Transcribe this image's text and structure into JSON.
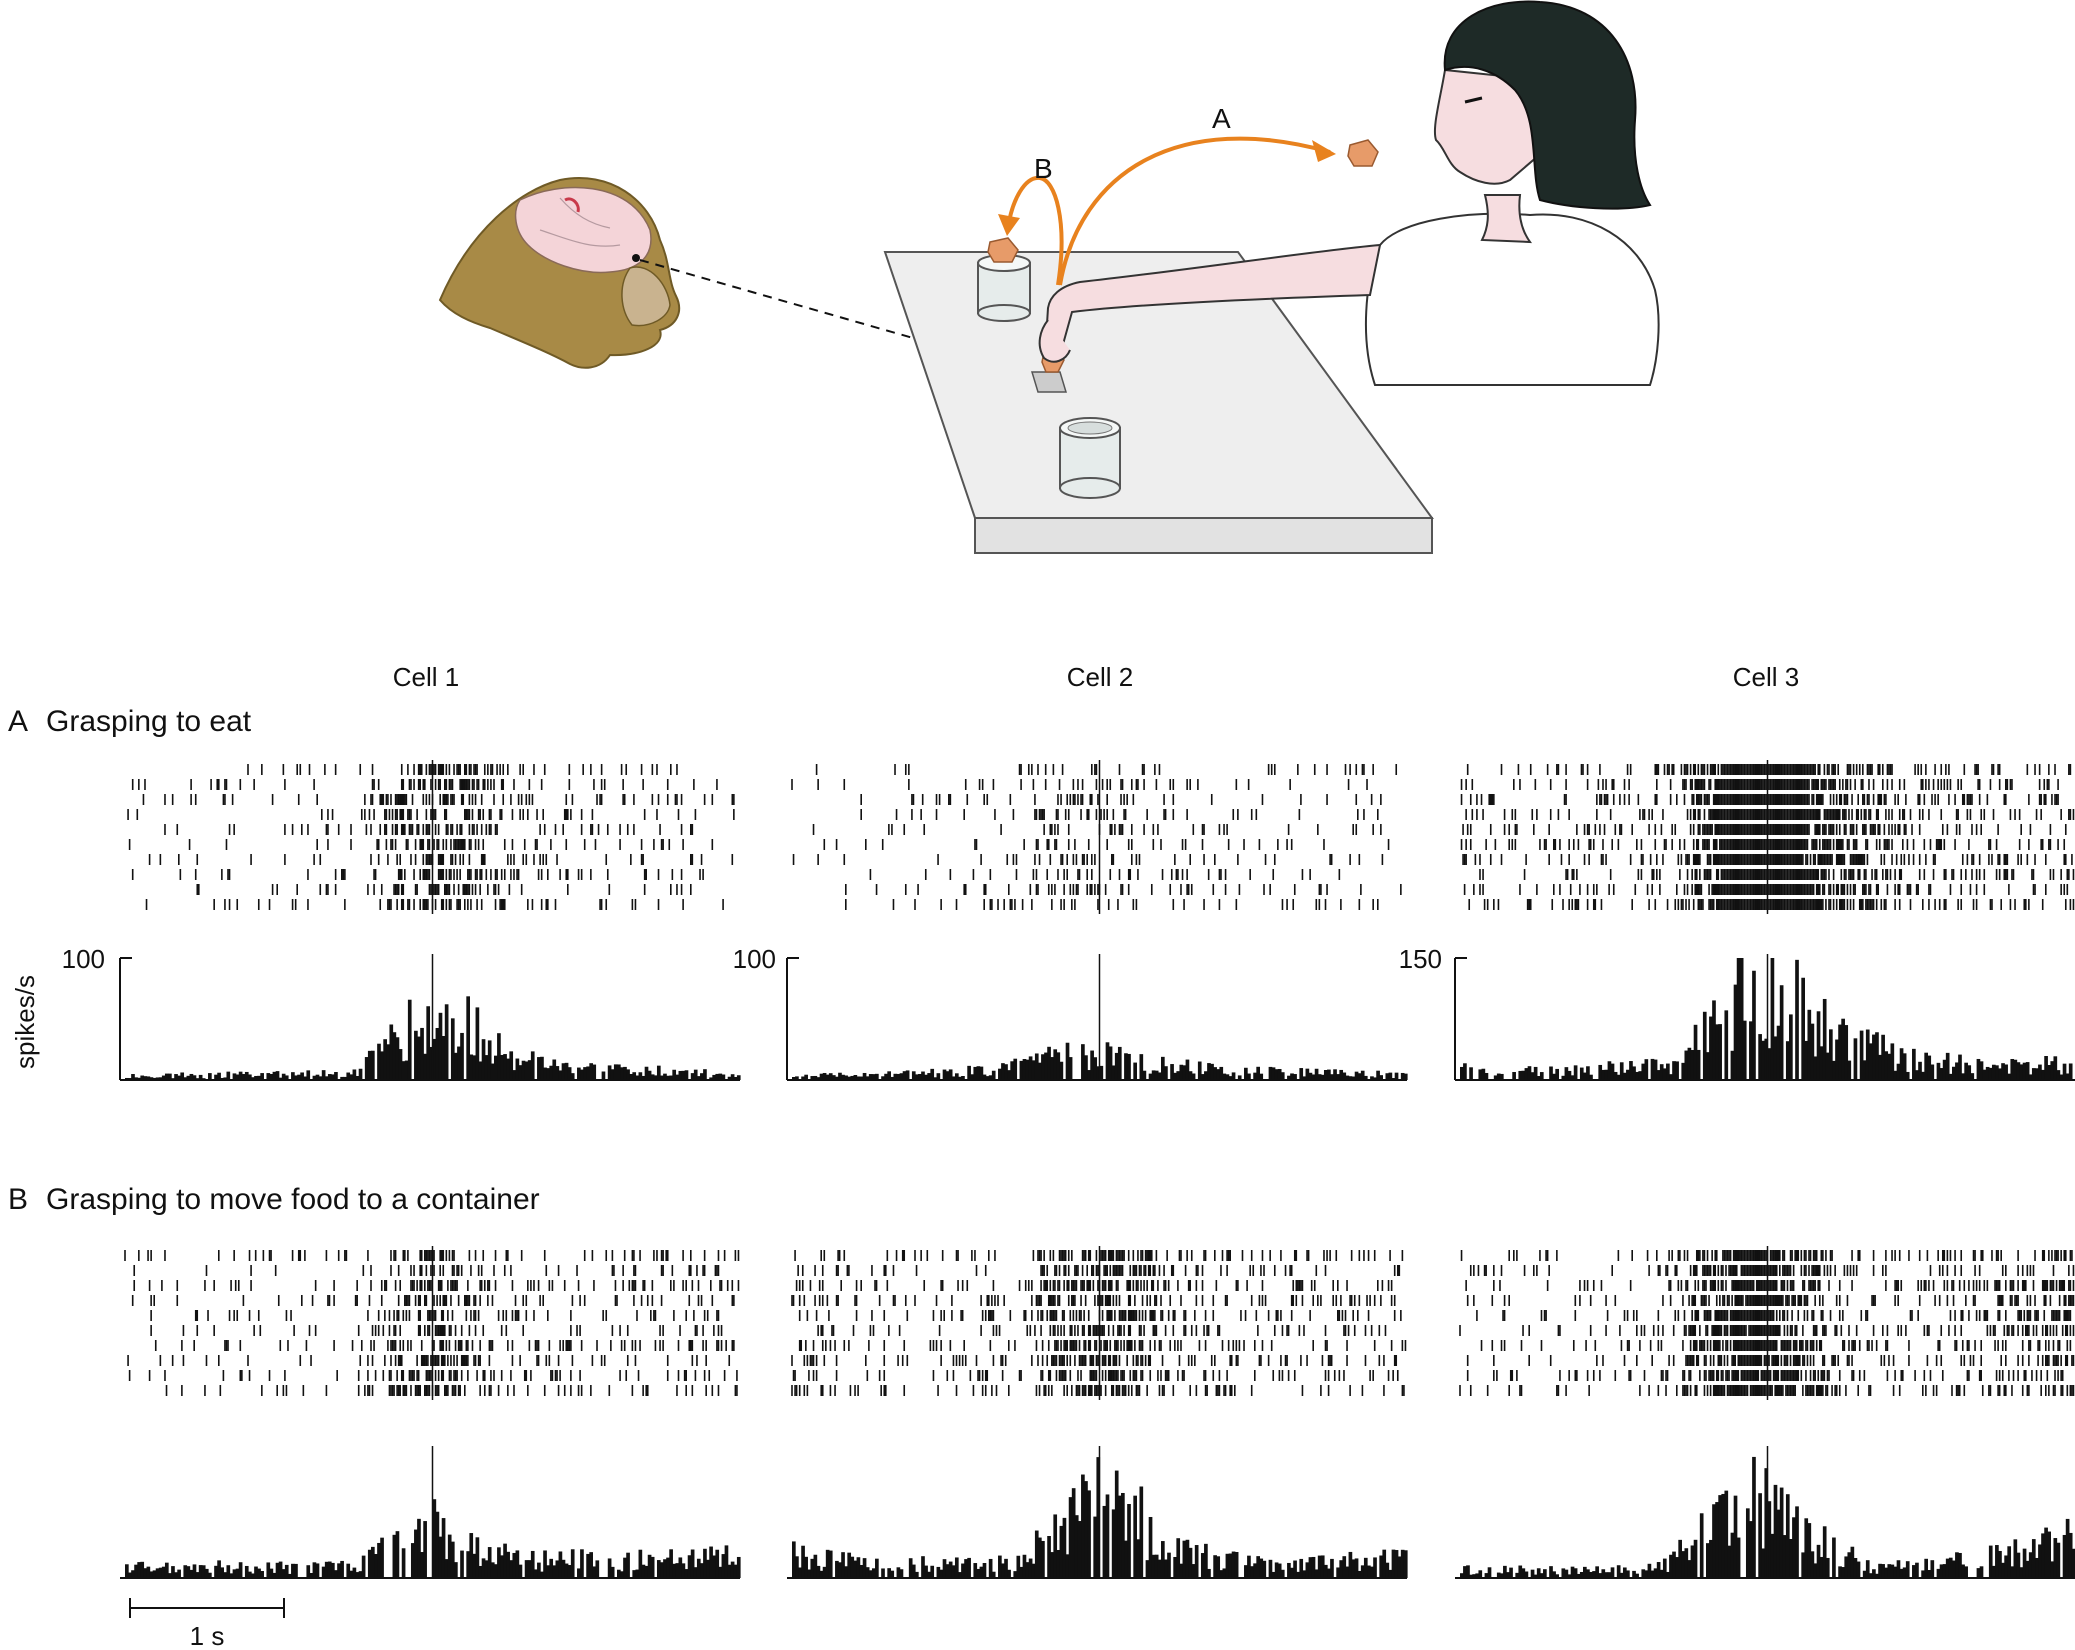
{
  "illustration": {
    "arrow_a_label": "A",
    "arrow_b_label": "B",
    "colors": {
      "arrow": "#e8821e",
      "food": "#e79b69",
      "table": "#eeeeee",
      "monkey_fur": "#a88a46",
      "brain": "#f4d4d8",
      "hair": "#1e2a27",
      "skin": "#f6dde0"
    }
  },
  "figure": {
    "cell_titles": [
      "Cell 1",
      "Cell 2",
      "Cell 3"
    ],
    "condition_a": {
      "letter": "A",
      "title": "Grasping to eat"
    },
    "condition_b": {
      "letter": "B",
      "title": "Grasping to move food to a container"
    },
    "ylabel": "spikes/s",
    "ymax_labels": [
      "100",
      "100",
      "150"
    ],
    "scalebar_label": "1 s"
  },
  "chart_data": [
    {
      "type": "bar",
      "title": "Cell 1",
      "condition": "Grasping to eat",
      "ylabel": "spikes/s",
      "ylim": [
        0,
        100
      ],
      "trials": 10,
      "x_range_s": [
        -2.0,
        2.0
      ],
      "alignment_s": 0,
      "profile": [
        [
          -2.0,
          3
        ],
        [
          -0.5,
          6
        ],
        [
          -0.4,
          18
        ],
        [
          -0.2,
          38
        ],
        [
          0.0,
          48
        ],
        [
          0.3,
          40
        ],
        [
          0.5,
          20
        ],
        [
          0.8,
          10
        ],
        [
          2.0,
          5
        ]
      ]
    },
    {
      "type": "bar",
      "title": "Cell 2",
      "condition": "Grasping to eat",
      "ylabel": "spikes/s",
      "ylim": [
        0,
        100
      ],
      "trials": 10,
      "x_range_s": [
        -2.0,
        2.0
      ],
      "alignment_s": 0,
      "profile": [
        [
          -2.0,
          3
        ],
        [
          -1.0,
          6
        ],
        [
          -0.6,
          10
        ],
        [
          -0.3,
          18
        ],
        [
          0.0,
          22
        ],
        [
          0.3,
          14
        ],
        [
          0.8,
          8
        ],
        [
          2.0,
          4
        ]
      ]
    },
    {
      "type": "bar",
      "title": "Cell 3",
      "condition": "Grasping to eat",
      "ylabel": "spikes/s",
      "ylim": [
        0,
        150
      ],
      "trials": 10,
      "x_range_s": [
        -2.0,
        2.0
      ],
      "alignment_s": 0,
      "profile": [
        [
          -2.0,
          15
        ],
        [
          -1.5,
          10
        ],
        [
          -0.6,
          18
        ],
        [
          -0.3,
          80
        ],
        [
          -0.1,
          120
        ],
        [
          0.2,
          90
        ],
        [
          0.5,
          50
        ],
        [
          0.9,
          25
        ],
        [
          1.5,
          15
        ],
        [
          2.0,
          20
        ]
      ]
    },
    {
      "type": "bar",
      "title": "Cell 1",
      "condition": "Grasping to move food to a container",
      "trials": 10,
      "x_range_s": [
        -2.0,
        2.0
      ],
      "alignment_s": 0,
      "profile": [
        [
          -2.0,
          8
        ],
        [
          -0.5,
          9
        ],
        [
          -0.3,
          22
        ],
        [
          0.0,
          42
        ],
        [
          0.3,
          25
        ],
        [
          0.6,
          14
        ],
        [
          1.5,
          14
        ],
        [
          2.0,
          16
        ]
      ]
    },
    {
      "type": "bar",
      "title": "Cell 2",
      "condition": "Grasping to move food to a container",
      "trials": 10,
      "x_range_s": [
        -2.0,
        2.0
      ],
      "alignment_s": 0,
      "profile": [
        [
          -2.0,
          18
        ],
        [
          -1.5,
          10
        ],
        [
          -0.5,
          12
        ],
        [
          -0.3,
          40
        ],
        [
          0.0,
          58
        ],
        [
          0.2,
          55
        ],
        [
          0.4,
          22
        ],
        [
          1.0,
          12
        ],
        [
          2.0,
          14
        ]
      ]
    },
    {
      "type": "bar",
      "title": "Cell 3",
      "condition": "Grasping to move food to a container",
      "trials": 10,
      "x_range_s": [
        -2.0,
        2.0
      ],
      "alignment_s": 0,
      "profile": [
        [
          -2.0,
          10
        ],
        [
          -1.2,
          8
        ],
        [
          -0.7,
          12
        ],
        [
          -0.5,
          40
        ],
        [
          -0.3,
          60
        ],
        [
          -0.1,
          90
        ],
        [
          0.1,
          70
        ],
        [
          0.4,
          35
        ],
        [
          0.7,
          10
        ],
        [
          1.5,
          25
        ],
        [
          2.0,
          45
        ]
      ]
    }
  ]
}
